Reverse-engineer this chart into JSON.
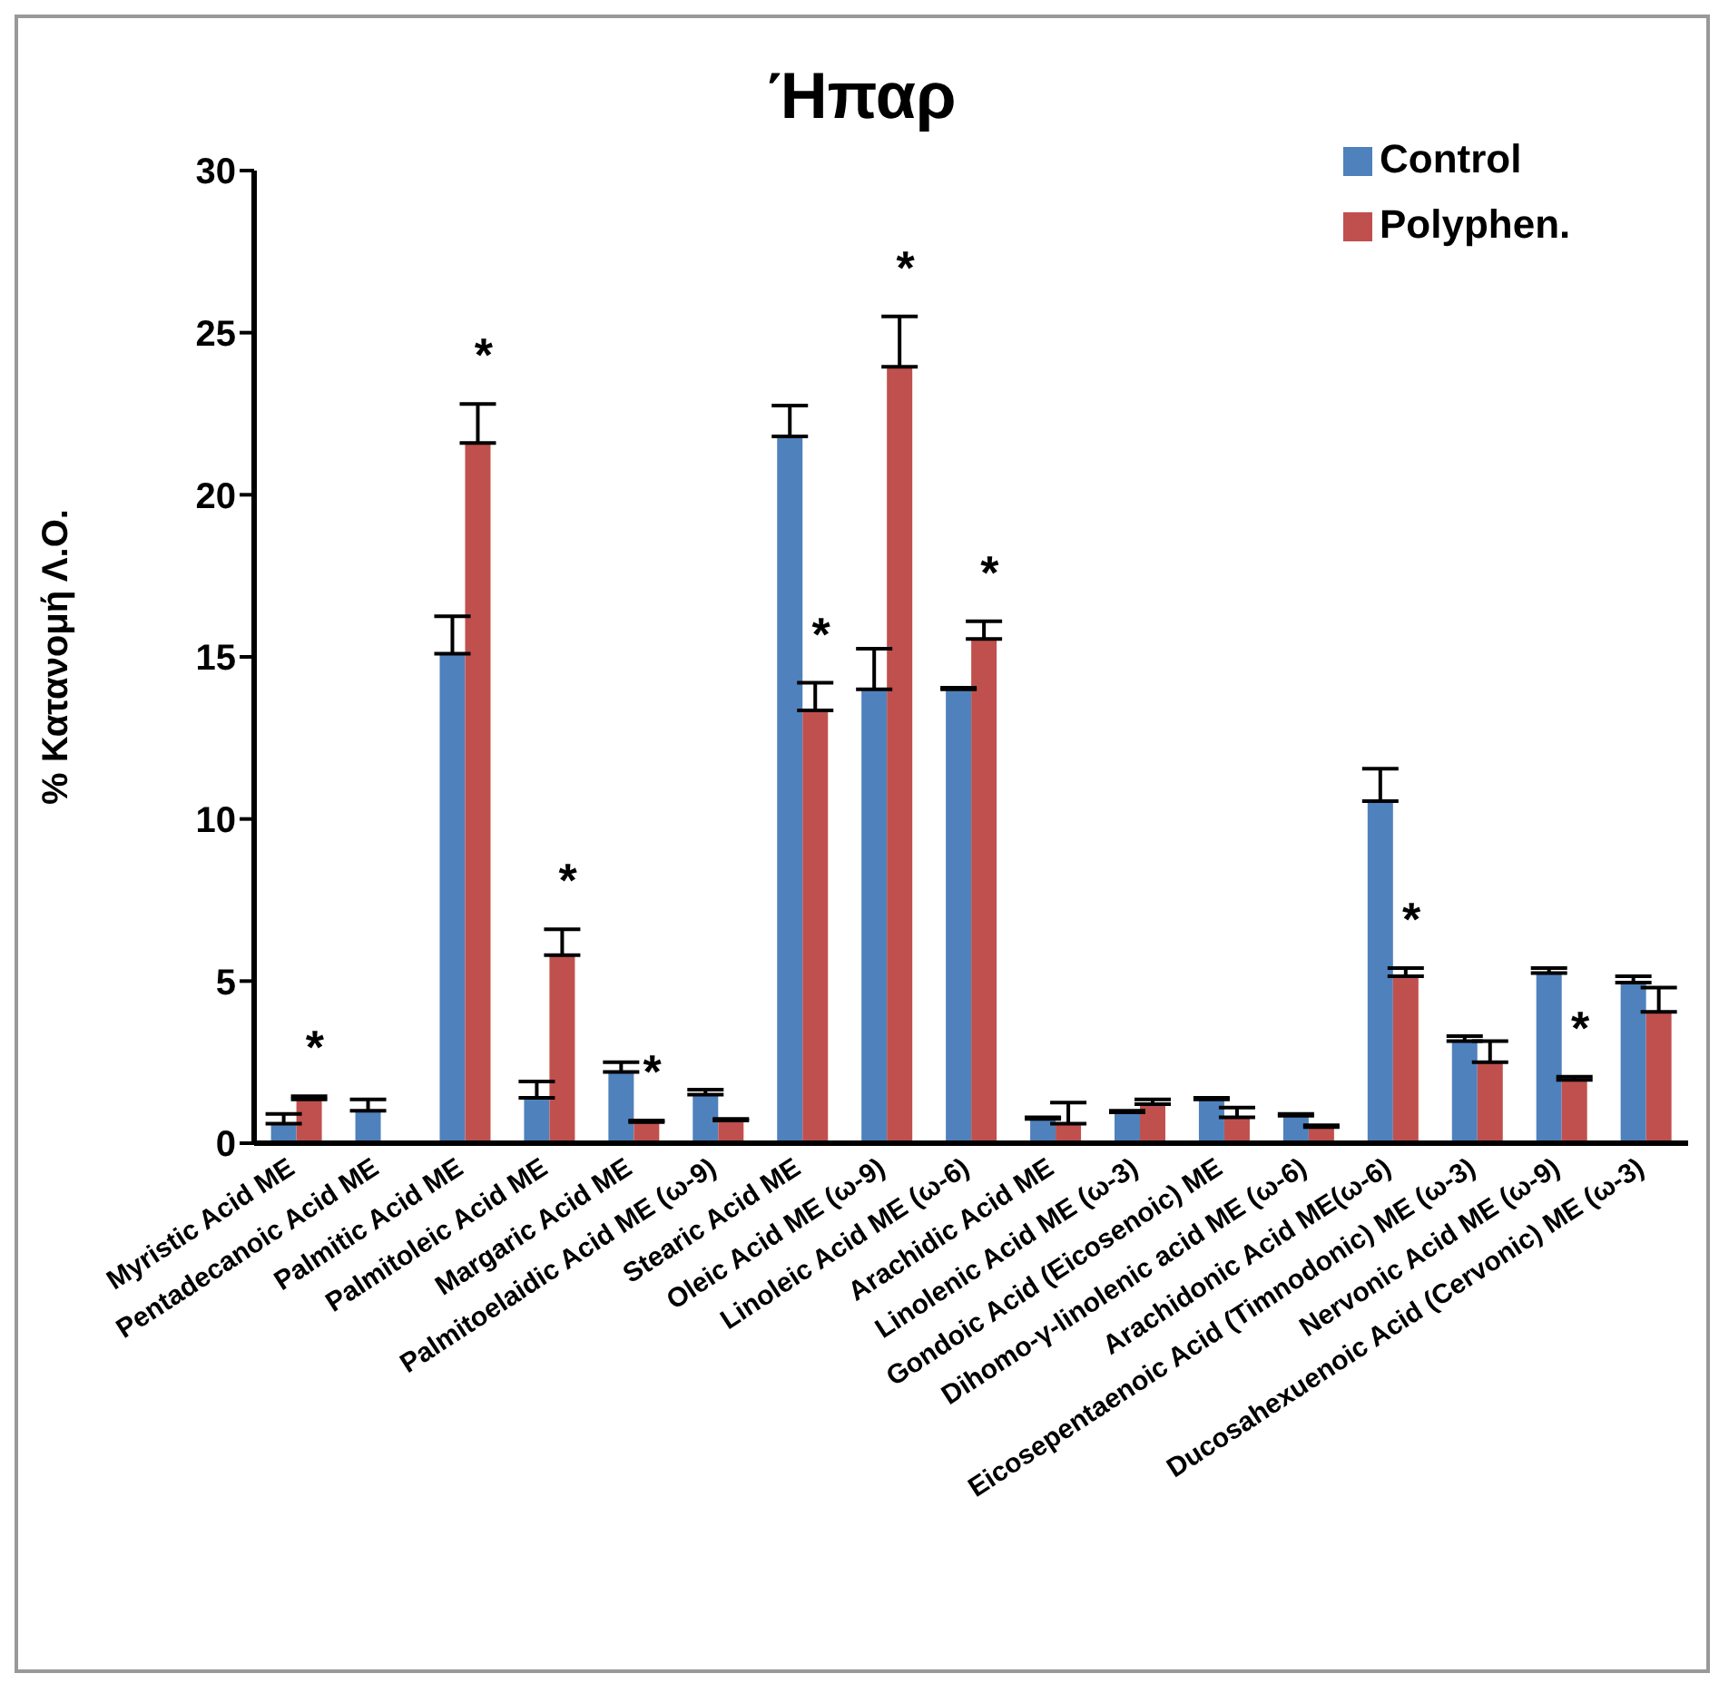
{
  "chart_data": {
    "type": "bar",
    "title": "Ήπαρ",
    "ylabel": "% Κατανομή Λ.Ο.",
    "categories": [
      "Myristic Acid ME",
      "Pentadecanoic Acid ME",
      "Palmitic Acid ME",
      "Palmitoleic Acid ME",
      "Margaric Acid ME",
      "Palmitoelaidic Acid ME (ω-9)",
      "Stearic Acid ME",
      "Oleic Acid ME (ω-9)",
      "Linoleic Acid ME (ω-6)",
      "Arachidic Acid ME",
      "Linolenic Acid ME (ω-3)",
      "Gondoic Acid (Eicosenoic) ME",
      "Dihomo-γ-linolenic acid ME (ω-6)",
      "Arachidonic Acid ME(ω-6)",
      "Eicosepentaenoic Acid  (Timnodonic) ME (ω-3)",
      "Nervonic Acid ME (ω-9)",
      "Ducosahexuenoic Acid (Cervonic) ME (ω-3)"
    ],
    "series": [
      {
        "name": "Control",
        "color": "#4f81bd",
        "values": [
          0.6,
          1.0,
          15.1,
          1.4,
          2.2,
          1.5,
          21.8,
          14.0,
          14.0,
          0.75,
          0.95,
          1.35,
          0.85,
          10.55,
          3.15,
          5.25,
          4.95
        ],
        "errors": [
          [
            0.6,
            0.9
          ],
          [
            1.0,
            1.35
          ],
          [
            15.1,
            16.25
          ],
          [
            1.4,
            1.9
          ],
          [
            2.2,
            2.5
          ],
          [
            1.5,
            1.65
          ],
          [
            21.8,
            22.75
          ],
          [
            14.0,
            15.25
          ],
          [
            14.0,
            14.05
          ],
          [
            0.75,
            0.8
          ],
          [
            0.95,
            1.0
          ],
          [
            1.35,
            1.4
          ],
          [
            0.85,
            0.9
          ],
          [
            10.55,
            11.55
          ],
          [
            3.15,
            3.3
          ],
          [
            5.25,
            5.4
          ],
          [
            4.95,
            5.15
          ]
        ]
      },
      {
        "name": "Polyphen.",
        "color": "#c0504d",
        "values": [
          1.35,
          null,
          21.6,
          5.8,
          0.65,
          0.7,
          13.35,
          23.95,
          15.55,
          0.6,
          1.2,
          0.8,
          0.5,
          5.15,
          2.5,
          1.95,
          4.05
        ],
        "errors": [
          [
            1.35,
            1.45
          ],
          null,
          [
            21.6,
            22.8
          ],
          [
            5.8,
            6.6
          ],
          [
            0.65,
            0.7
          ],
          [
            0.7,
            0.75
          ],
          [
            13.35,
            14.2
          ],
          [
            23.95,
            25.5
          ],
          [
            15.55,
            16.1
          ],
          [
            0.6,
            1.25
          ],
          [
            1.2,
            1.35
          ],
          [
            0.8,
            1.1
          ],
          [
            0.5,
            0.55
          ],
          [
            5.15,
            5.4
          ],
          [
            2.5,
            3.15
          ],
          [
            1.95,
            2.05
          ],
          [
            4.05,
            4.8
          ]
        ]
      }
    ],
    "ylim": [
      0,
      30
    ],
    "yticks": [
      0,
      5,
      10,
      15,
      20,
      25,
      30
    ],
    "legend": "top right",
    "annotations": [
      {
        "text": "*",
        "x": "Myristic Acid ME",
        "y": 1.45
      },
      {
        "text": "*",
        "x": "Palmitic Acid ME",
        "y": 22.8
      },
      {
        "text": "*",
        "x": "Palmitoleic Acid ME",
        "y": 6.6
      },
      {
        "text": "*",
        "x": "Margaric Acid ME",
        "y": 0.7
      },
      {
        "text": "*",
        "x": "Stearic Acid ME",
        "y": 14.2
      },
      {
        "text": "*",
        "x": "Oleic Acid ME (ω-9)",
        "y": 25.5
      },
      {
        "text": "*",
        "x": "Linoleic Acid ME (ω-6)",
        "y": 16.1
      },
      {
        "text": "*",
        "x": "Arachidonic Acid ME(ω-6)",
        "y": 5.4
      },
      {
        "text": "*",
        "x": "Nervonic Acid ME (ω-9)",
        "y": 2.05
      }
    ]
  }
}
